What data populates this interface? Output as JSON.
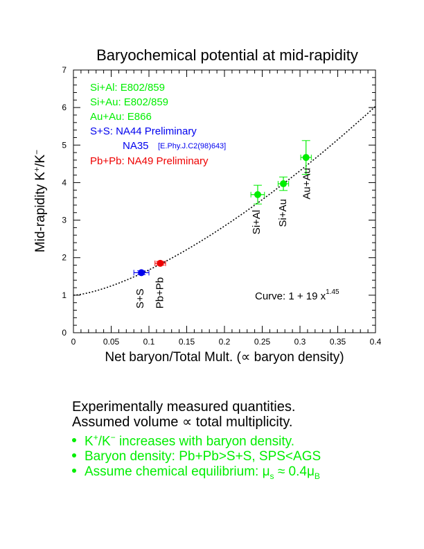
{
  "chart_data": {
    "type": "scatter",
    "title": "Baryochemical potential at mid-rapidity",
    "xlabel": "Net baryon/Total Mult. (∝ baryon density)",
    "ylabel_main": "Mid-rapidity K",
    "ylabel_sup1": "+",
    "ylabel_slash": "/K",
    "ylabel_sup2": "−",
    "xlim": [
      0,
      0.4
    ],
    "ylim": [
      0,
      7
    ],
    "x_ticks": [
      "0",
      "0.05",
      "0.1",
      "0.15",
      "0.2",
      "0.25",
      "0.3",
      "0.35",
      "0.4"
    ],
    "y_ticks": [
      "0",
      "1",
      "2",
      "3",
      "4",
      "5",
      "6",
      "7"
    ],
    "points": [
      {
        "label": "S+S",
        "x": 0.09,
        "y": 1.6,
        "xerr": 0.01,
        "yerr": 0.05,
        "color": "#0000ee"
      },
      {
        "label": "Pb+Pb",
        "x": 0.115,
        "y": 1.85,
        "xerr": 0.007,
        "yerr": 0.05,
        "color": "#ee0000"
      },
      {
        "label": "Si+Al",
        "x": 0.244,
        "y": 3.68,
        "xerr": 0.009,
        "yerr": 0.25,
        "color": "#00ee00"
      },
      {
        "label": "Si+Au",
        "x": 0.278,
        "y": 3.97,
        "xerr": 0.007,
        "yerr": 0.18,
        "color": "#00ee00"
      },
      {
        "label": "Au+Au",
        "x": 0.308,
        "y": 4.67,
        "xerr": 0.007,
        "yerr": 0.45,
        "color": "#00ee00"
      }
    ],
    "curve": {
      "a": 1,
      "b": 19,
      "p": 1.45
    },
    "curve_label_main": "Curve: 1 + 19 x",
    "curve_label_exp": "1.45",
    "legend": [
      {
        "text": "Si+Al: E802/859",
        "color": "#00ee00"
      },
      {
        "text": "Si+Au: E802/859",
        "color": "#00ee00"
      },
      {
        "text": "Au+Au: E866",
        "color": "#00ee00"
      },
      {
        "text": "S+S: NA44 Preliminary",
        "color": "#0000ee"
      },
      {
        "text": "NA35",
        "small": "[E.Phy.J.C2(98)643]",
        "color": "#0000ee"
      },
      {
        "text": "Pb+Pb: NA49 Preliminary",
        "color": "#ee0000"
      }
    ],
    "grid": false,
    "legend_position": "top-left"
  },
  "notes": {
    "line1": "Experimentally measured quantities.",
    "line2": "Assumed volume ∝ total multiplicity.",
    "b1_main": "K",
    "b1_sup1": "+",
    "b1_slash": "/K",
    "b1_sup2": "−",
    "b1_rest": " increases with baryon density.",
    "b2": "Baryon density: Pb+Pb>S+S, SPS<AGS",
    "b3_pre": "Assume chemical equilibrium: μ",
    "b3_sub1": "s",
    "b3_mid": " ≈ 0.4μ",
    "b3_sub2": "B",
    "colors": {
      "bullet": "#00ee00"
    }
  }
}
